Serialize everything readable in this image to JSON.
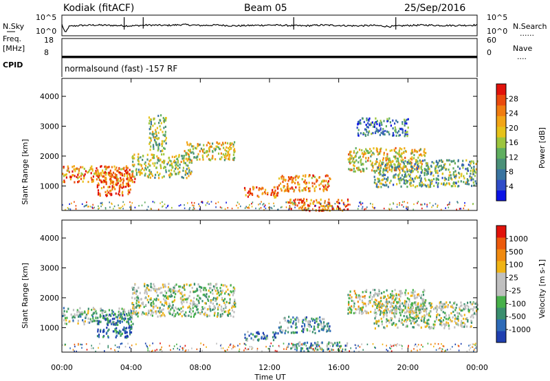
{
  "header": {
    "station": "Kodiak (fitACF)",
    "beam": "Beam 05",
    "date": "25/Sep/2016",
    "mode": "normalsound (fast) -157 RF"
  },
  "strip_labels": {
    "nsky": "N.Sky",
    "nsearch": "N.Search",
    "freq": "Freq.",
    "freq_unit": "[MHz]",
    "nave": "Nave",
    "cpid": "CPID",
    "dots": "......",
    "dots_short": "...."
  },
  "chart_data": [
    {
      "type": "line",
      "panel": "noise",
      "x_range_hours": [
        0,
        24
      ],
      "left_axis": {
        "label": "N.Sky",
        "ticks": [
          "10^5",
          "10^0"
        ]
      },
      "right_axis": {
        "label": "N.Search",
        "ticks": [
          "10^5",
          "10^0"
        ]
      },
      "series": [
        {
          "values": [
            [
              0.0,
              0.55
            ],
            [
              0.2,
              0.12
            ],
            [
              0.4,
              0.45
            ],
            [
              1,
              0.5
            ],
            [
              2,
              0.52
            ],
            [
              3,
              0.5
            ],
            [
              4,
              0.48
            ],
            [
              5,
              0.52
            ],
            [
              6,
              0.5
            ],
            [
              7,
              0.54
            ],
            [
              8,
              0.5
            ],
            [
              9,
              0.52
            ],
            [
              10,
              0.48
            ],
            [
              11,
              0.5
            ],
            [
              12,
              0.52
            ],
            [
              13,
              0.5
            ],
            [
              14,
              0.48
            ],
            [
              15,
              0.52
            ],
            [
              16,
              0.5
            ],
            [
              17,
              0.48
            ],
            [
              18,
              0.5
            ],
            [
              19,
              0.45
            ],
            [
              20,
              0.5
            ],
            [
              21,
              0.52
            ],
            [
              22,
              0.5
            ],
            [
              23,
              0.5
            ],
            [
              24,
              0.52
            ]
          ]
        }
      ]
    },
    {
      "type": "line",
      "panel": "frequency",
      "x_range_hours": [
        0,
        24
      ],
      "left_axis": {
        "label": "Freq. [MHz]",
        "ticks": [
          "18",
          "8"
        ],
        "range": [
          8,
          18
        ]
      },
      "right_axis": {
        "label": "Nave",
        "ticks": [
          "60",
          "0"
        ],
        "range": [
          0,
          60
        ]
      },
      "series": [
        {
          "values": [
            [
              0,
              8.6
            ],
            [
              24,
              8.6
            ]
          ]
        }
      ]
    },
    {
      "type": "heatmap",
      "panel": "power",
      "xlabel": "",
      "ylabel": "Slant Range [km]",
      "x_range_hours": [
        0,
        24
      ],
      "ylim": [
        180,
        4600
      ],
      "yticks": [
        "1000",
        "2000",
        "3000",
        "4000"
      ],
      "colorbar": {
        "label": "Power [dB]",
        "ticks": [
          "28",
          "24",
          "20",
          "16",
          "12",
          "8",
          "4"
        ],
        "colors": [
          "#0b13e5",
          "#2f4cc8",
          "#3a74a0",
          "#4a9078",
          "#5fae5f",
          "#9cc53e",
          "#e6c21a",
          "#f2a516",
          "#f07c10",
          "#ea4a0d",
          "#e1120b"
        ]
      },
      "regions": [
        {
          "t": [
            0.0,
            4.2
          ],
          "r": [
            1150,
            1700
          ],
          "level": 0.75
        },
        {
          "t": [
            2.0,
            4.0
          ],
          "r": [
            700,
            1500
          ],
          "level": 0.85
        },
        {
          "t": [
            4.0,
            7.5
          ],
          "r": [
            1300,
            2100
          ],
          "level": 0.5
        },
        {
          "t": [
            5.0,
            6.0
          ],
          "r": [
            2200,
            3400
          ],
          "level": 0.45
        },
        {
          "t": [
            7.0,
            10.0
          ],
          "r": [
            1900,
            2500
          ],
          "level": 0.55
        },
        {
          "t": [
            10.5,
            12.5
          ],
          "r": [
            650,
            1000
          ],
          "level": 0.8
        },
        {
          "t": [
            12.5,
            15.5
          ],
          "r": [
            850,
            1400
          ],
          "level": 0.75
        },
        {
          "t": [
            13.0,
            16.5
          ],
          "r": [
            200,
            600
          ],
          "level": 0.8
        },
        {
          "t": [
            16.5,
            21.0
          ],
          "r": [
            1500,
            2300
          ],
          "level": 0.6
        },
        {
          "t": [
            18.0,
            24.0
          ],
          "r": [
            1000,
            1900
          ],
          "level": 0.4
        },
        {
          "t": [
            17.0,
            20.0
          ],
          "r": [
            2700,
            3300
          ],
          "level": 0.25
        }
      ]
    },
    {
      "type": "heatmap",
      "panel": "velocity",
      "xlabel": "Time UT",
      "ylabel": "Slant Range [km]",
      "x_range_hours": [
        0,
        24
      ],
      "ylim": [
        180,
        4600
      ],
      "xticks": [
        "00:00",
        "04:00",
        "08:00",
        "12:00",
        "16:00",
        "20:00",
        "00:00"
      ],
      "yticks": [
        "1000",
        "2000",
        "3000",
        "4000"
      ],
      "colorbar": {
        "label": "Velocity [m s-1]",
        "ticks": [
          "1000",
          "500",
          "100",
          "25",
          "-25",
          "-100",
          "-500",
          "-1000"
        ],
        "colors": [
          "#1f3fb0",
          "#2e6bb8",
          "#3a8e6e",
          "#47b04a",
          "#bfbfbf",
          "#c0c0c0",
          "#f0b416",
          "#f08a10",
          "#ec5a0c",
          "#e1120b"
        ]
      },
      "regions": [
        {
          "t": [
            0.0,
            4.2
          ],
          "r": [
            1150,
            1700
          ],
          "level": 0.4
        },
        {
          "t": [
            2.0,
            4.0
          ],
          "r": [
            700,
            1500
          ],
          "level": 0.15
        },
        {
          "t": [
            4.0,
            10.0
          ],
          "r": [
            1400,
            2500
          ],
          "level": 0.45
        },
        {
          "t": [
            10.5,
            12.5
          ],
          "r": [
            600,
            900
          ],
          "level": 0.2
        },
        {
          "t": [
            12.5,
            15.5
          ],
          "r": [
            850,
            1400
          ],
          "level": 0.3
        },
        {
          "t": [
            13.0,
            16.5
          ],
          "r": [
            250,
            550
          ],
          "level": 0.3
        },
        {
          "t": [
            16.5,
            21.0
          ],
          "r": [
            1500,
            2300
          ],
          "level": 0.5
        },
        {
          "t": [
            18.0,
            24.0
          ],
          "r": [
            1000,
            1900
          ],
          "level": 0.45
        }
      ]
    }
  ]
}
